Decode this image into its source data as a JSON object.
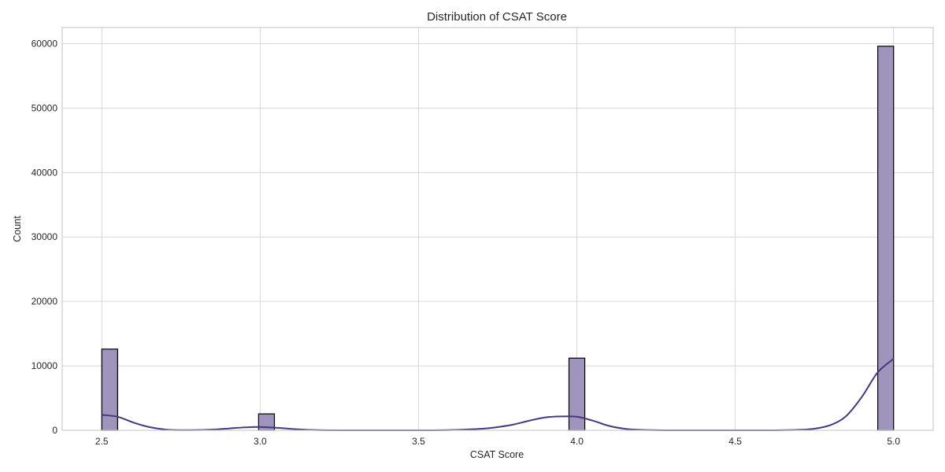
{
  "chart_data": {
    "type": "bar",
    "subtype": "histogram",
    "title": "Distribution of CSAT Score",
    "xlabel": "CSAT Score",
    "ylabel": "Count",
    "xlim": [
      2.375,
      5.125
    ],
    "ylim": [
      0,
      62500
    ],
    "xticks": [
      2.5,
      3.0,
      3.5,
      4.0,
      4.5,
      5.0
    ],
    "xtick_labels": [
      "2.5",
      "3.0",
      "3.5",
      "4.0",
      "4.5",
      "5.0"
    ],
    "yticks": [
      0,
      10000,
      20000,
      30000,
      40000,
      50000,
      60000
    ],
    "ytick_labels": [
      "0",
      "10000",
      "20000",
      "30000",
      "40000",
      "50000",
      "60000"
    ],
    "grid": true,
    "legend": "none",
    "bin_width": 0.05,
    "bins": [
      {
        "start": 2.5,
        "end": 2.55,
        "count": 12600
      },
      {
        "start": 2.995,
        "end": 3.045,
        "count": 2550
      },
      {
        "start": 3.975,
        "end": 4.025,
        "count": 11200
      },
      {
        "start": 4.95,
        "end": 5.0,
        "count": 59600
      }
    ],
    "kde": {
      "x": [
        2.5,
        2.55,
        2.6,
        2.65,
        2.7,
        2.75,
        2.8,
        2.85,
        2.9,
        2.95,
        3.0,
        3.05,
        3.1,
        3.15,
        3.2,
        3.3,
        3.4,
        3.5,
        3.6,
        3.7,
        3.75,
        3.8,
        3.85,
        3.9,
        3.95,
        4.0,
        4.05,
        4.1,
        4.15,
        4.2,
        4.3,
        4.4,
        4.5,
        4.6,
        4.7,
        4.75,
        4.8,
        4.85,
        4.9,
        4.95,
        5.0
      ],
      "y": [
        2400,
        2100,
        1200,
        500,
        120,
        30,
        40,
        120,
        280,
        450,
        520,
        400,
        220,
        80,
        20,
        0,
        0,
        0,
        50,
        250,
        500,
        900,
        1500,
        2000,
        2150,
        2100,
        1500,
        700,
        250,
        80,
        0,
        0,
        0,
        0,
        80,
        250,
        800,
        2200,
        5200,
        9000,
        11100
      ]
    },
    "colors": {
      "bar_fill": "#9f95bc",
      "bar_edge": "#000000",
      "kde_line": "#453781",
      "grid": "#d6d6d6",
      "frame": "#cccccc"
    }
  }
}
